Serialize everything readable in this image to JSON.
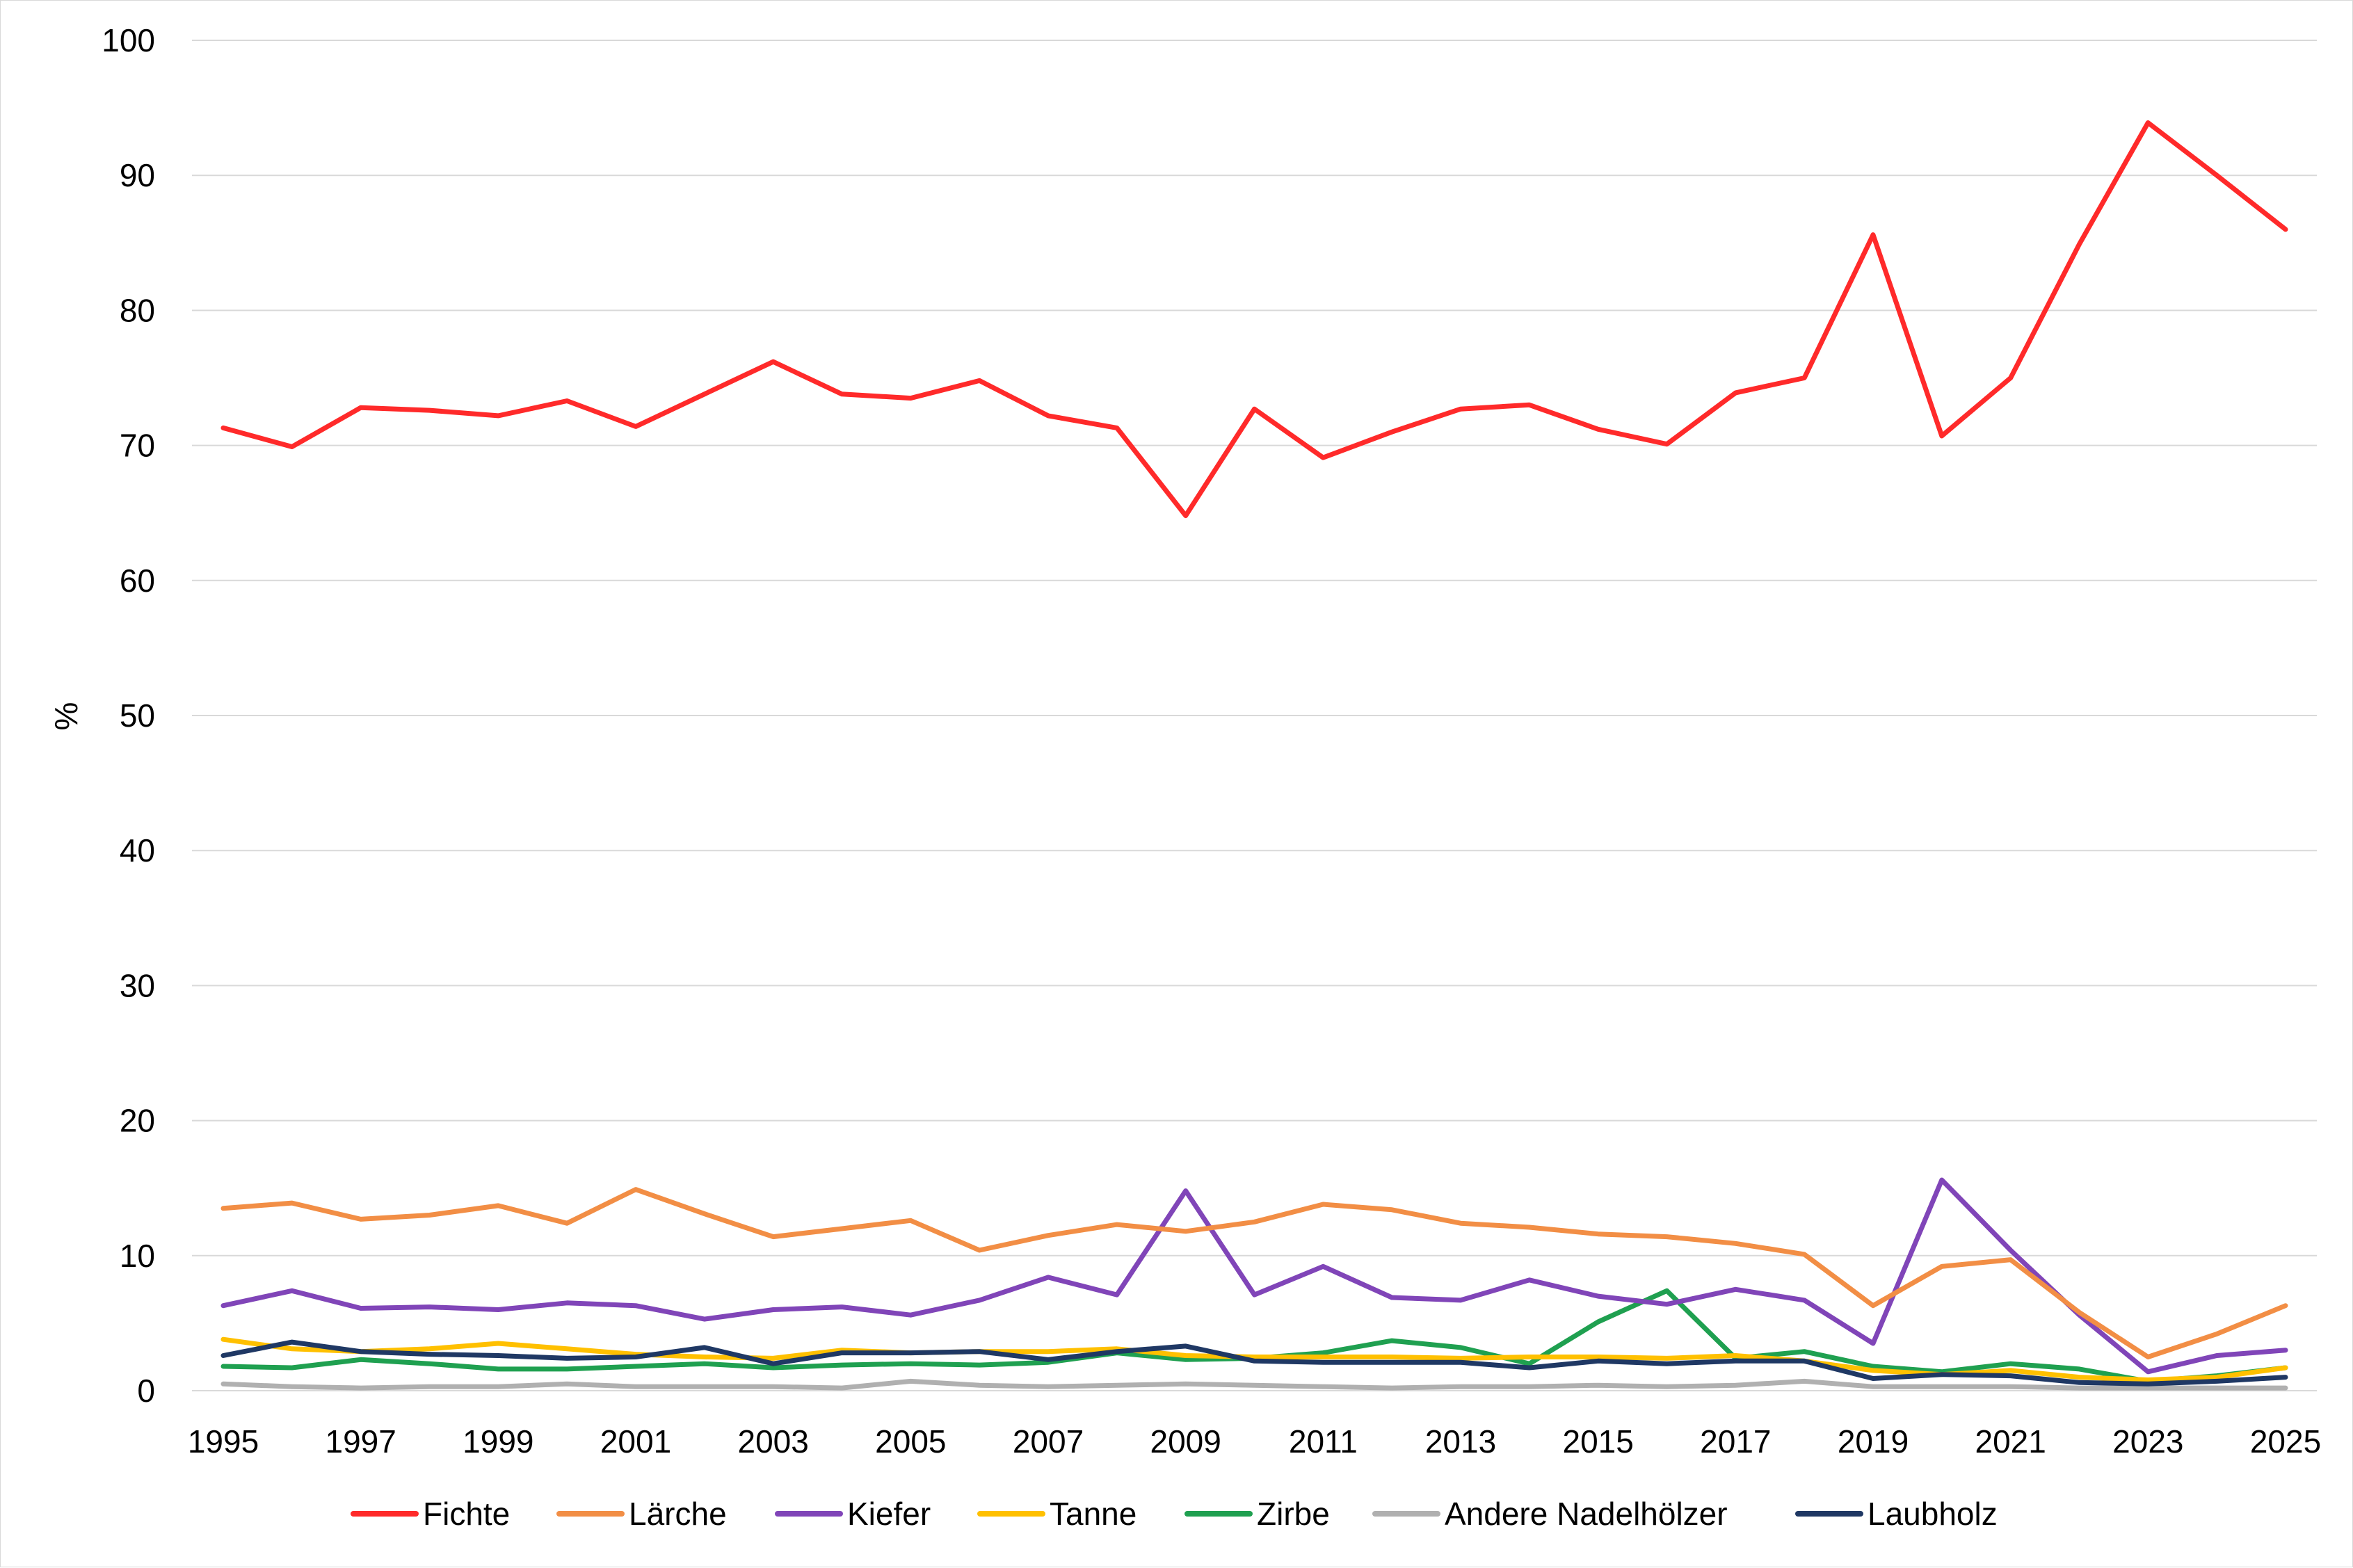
{
  "chart_data": {
    "type": "line",
    "title": "",
    "xlabel": "",
    "ylabel": "%",
    "ylim": [
      0,
      100
    ],
    "yticks": [
      0,
      10,
      20,
      30,
      40,
      50,
      60,
      70,
      80,
      90,
      100
    ],
    "grid": true,
    "legend_position": "bottom",
    "x": [
      1995,
      1996,
      1997,
      1998,
      1999,
      2000,
      2001,
      2002,
      2003,
      2004,
      2005,
      2006,
      2007,
      2008,
      2009,
      2010,
      2011,
      2012,
      2013,
      2014,
      2015,
      2016,
      2017,
      2018,
      2019,
      2020,
      2021,
      2022,
      2023,
      2024,
      2025
    ],
    "xtick_labels": [
      "1995",
      "1997",
      "1999",
      "2001",
      "2003",
      "2005",
      "2007",
      "2009",
      "2011",
      "2013",
      "2015",
      "2017",
      "2019",
      "2021",
      "2023",
      "2025"
    ],
    "series": [
      {
        "name": "Fichte",
        "color": "#ff2a2a",
        "values": [
          71.3,
          69.9,
          72.8,
          72.6,
          72.2,
          73.3,
          71.4,
          73.8,
          76.2,
          73.8,
          73.5,
          74.8,
          72.2,
          71.3,
          64.8,
          72.7,
          69.1,
          71.0,
          72.7,
          73.0,
          71.2,
          70.1,
          73.9,
          75.0,
          85.6,
          70.7,
          75.0,
          84.9,
          93.9,
          90.0,
          86.0
        ]
      },
      {
        "name": "Lärche",
        "color": "#f28e45",
        "values": [
          13.5,
          13.9,
          12.7,
          13.0,
          13.7,
          12.4,
          14.9,
          13.1,
          11.4,
          12.0,
          12.6,
          10.4,
          11.5,
          12.3,
          11.8,
          12.5,
          13.8,
          13.4,
          12.4,
          12.1,
          11.6,
          11.4,
          10.9,
          10.1,
          6.3,
          9.2,
          9.7,
          5.8,
          2.5,
          4.2,
          6.3
        ]
      },
      {
        "name": "Kiefer",
        "color": "#8045b8",
        "values": [
          6.3,
          7.4,
          6.1,
          6.2,
          6.0,
          6.5,
          6.3,
          5.3,
          6.0,
          6.2,
          5.6,
          6.7,
          8.4,
          7.1,
          14.8,
          7.1,
          9.2,
          6.9,
          6.7,
          8.2,
          7.0,
          6.4,
          7.5,
          6.7,
          3.5,
          15.6,
          10.4,
          5.6,
          1.4,
          2.6,
          3.0
        ]
      },
      {
        "name": "Tanne",
        "color": "#ffc000",
        "values": [
          3.8,
          3.1,
          2.9,
          3.1,
          3.5,
          3.1,
          2.7,
          2.5,
          2.4,
          3.0,
          2.8,
          2.9,
          2.9,
          3.1,
          2.6,
          2.5,
          2.5,
          2.5,
          2.4,
          2.5,
          2.5,
          2.4,
          2.6,
          2.2,
          1.5,
          1.2,
          1.5,
          1.0,
          0.8,
          1.0,
          1.7
        ]
      },
      {
        "name": "Zirbe",
        "color": "#1fa050",
        "values": [
          1.8,
          1.7,
          2.3,
          2.0,
          1.6,
          1.6,
          1.8,
          2.0,
          1.7,
          1.9,
          2.0,
          1.9,
          2.1,
          2.8,
          2.3,
          2.4,
          2.8,
          3.7,
          3.2,
          2.0,
          5.1,
          7.4,
          2.4,
          2.9,
          1.8,
          1.4,
          2.0,
          1.6,
          0.7,
          1.1,
          1.7
        ]
      },
      {
        "name": "Andere Nadelhölzer",
        "color": "#b0b0b0",
        "values": [
          0.5,
          0.3,
          0.2,
          0.3,
          0.3,
          0.5,
          0.3,
          0.3,
          0.3,
          0.2,
          0.7,
          0.4,
          0.3,
          0.4,
          0.5,
          0.4,
          0.3,
          0.2,
          0.3,
          0.3,
          0.4,
          0.3,
          0.4,
          0.7,
          0.3,
          0.3,
          0.3,
          0.2,
          0.2,
          0.2,
          0.2
        ]
      },
      {
        "name": "Laubholz",
        "color": "#1f3864",
        "values": [
          2.6,
          3.6,
          2.9,
          2.7,
          2.6,
          2.4,
          2.5,
          3.2,
          2.0,
          2.8,
          2.8,
          2.9,
          2.3,
          2.9,
          3.3,
          2.2,
          2.1,
          2.1,
          2.1,
          1.7,
          2.2,
          2.0,
          2.2,
          2.2,
          0.9,
          1.2,
          1.1,
          0.6,
          0.5,
          0.7,
          1.0
        ]
      }
    ]
  }
}
